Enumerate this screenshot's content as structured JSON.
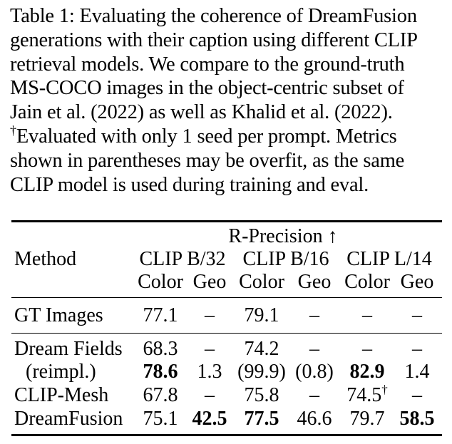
{
  "caption": {
    "lines": [
      "Table 1: Evaluating the coherence of DreamFusion",
      "generations with their caption using different CLIP",
      "retrieval models. We compare to the ground-truth",
      "MS-COCO images in the object-centric subset of",
      "Jain et al. (2022) as well as Khalid et al. (2022).",
      "Evaluated with only 1 seed per prompt. Metrics",
      "shown in parentheses may be overfit, as the same",
      "CLIP model is used during training and eval."
    ],
    "dagger": "†"
  },
  "table": {
    "group_header": "R-Precision ↑",
    "method_header": "Method",
    "models": [
      "CLIP B/32",
      "CLIP B/16",
      "CLIP L/14"
    ],
    "subheaders": [
      "Color",
      "Geo",
      "Color",
      "Geo",
      "Color",
      "Geo"
    ],
    "rows": [
      {
        "method": "GT Images",
        "values": [
          "77.1",
          "–",
          "79.1",
          "–",
          "–",
          "–"
        ]
      },
      {
        "method": "Dream Fields",
        "values": [
          "68.3",
          "–",
          "74.2",
          "–",
          "–",
          "–"
        ]
      },
      {
        "method": "(reimpl.)",
        "values": [
          "78.6",
          "1.3",
          "(99.9)",
          "(0.8)",
          "82.9",
          "1.4"
        ]
      },
      {
        "method": "CLIP-Mesh",
        "values": [
          "67.8",
          "–",
          "75.8",
          "–",
          "74.5",
          "–"
        ],
        "dagger": "†"
      },
      {
        "method": "DreamFusion",
        "values": [
          "75.1",
          "42.5",
          "77.5",
          "46.6",
          "79.7",
          "58.5"
        ]
      }
    ]
  }
}
